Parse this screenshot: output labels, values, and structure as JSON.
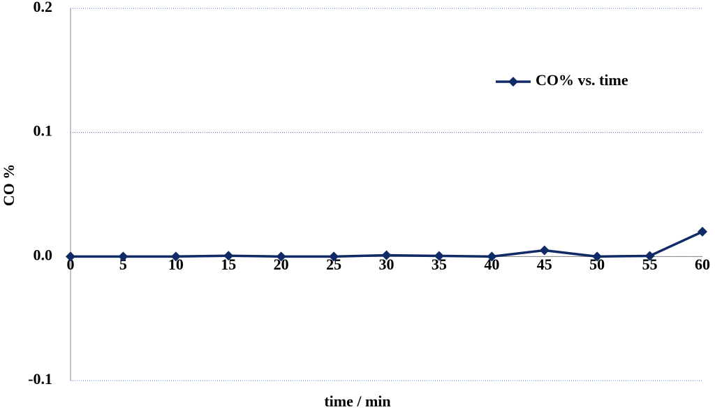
{
  "chart_data": {
    "type": "line",
    "x_label": "time / min",
    "y_label": "CO %",
    "x": [
      0,
      5,
      10,
      15,
      20,
      25,
      30,
      35,
      40,
      45,
      50,
      55,
      60
    ],
    "series": [
      {
        "name": "CO% vs. time",
        "color": "#102a66",
        "values": [
          0,
          0,
          0,
          0.0006,
          0,
          0,
          0.001,
          0.0005,
          0,
          0.005,
          0,
          0.0005,
          0.02
        ]
      }
    ],
    "xlim": [
      0,
      60
    ],
    "xticks": [
      0,
      5,
      10,
      15,
      20,
      25,
      30,
      35,
      40,
      45,
      50,
      55,
      60
    ],
    "ylim": [
      -0.1,
      0.2
    ],
    "yticks": [
      -0.1,
      {
        "value": 0,
        "label": "0.0"
      },
      0.1,
      0.2
    ],
    "grid": true,
    "legend": "upper right"
  }
}
